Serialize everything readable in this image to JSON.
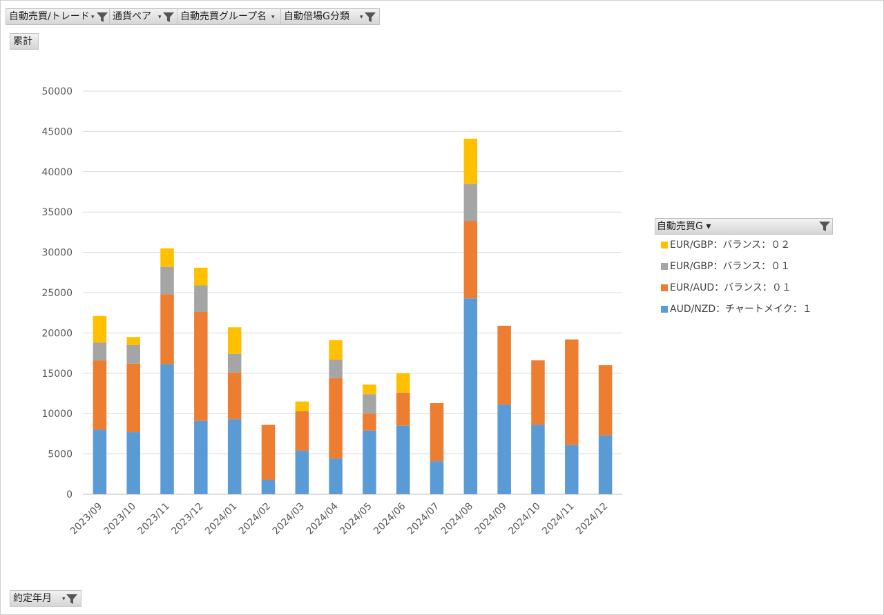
{
  "filters": {
    "auto_trade": "自動売買/トレード",
    "currency_pair": "通貨ペア",
    "auto_group_name": "自動売買グループ名",
    "multiplier_category": "自動倍場G分類"
  },
  "value_field": "累計",
  "axis_field": "約定年月",
  "legend_title": "自動売買G",
  "chart_data": {
    "type": "bar",
    "stacked": true,
    "categories": [
      "2023/09",
      "2023/10",
      "2023/11",
      "2023/12",
      "2024/01",
      "2024/02",
      "2024/03",
      "2024/04",
      "2024/05",
      "2024/06",
      "2024/07",
      "2024/08",
      "2024/09",
      "2024/10",
      "2024/11",
      "2024/12"
    ],
    "series": [
      {
        "name": "AUD/NZD：チャートメイク：１",
        "color": "#5b9bd5",
        "values": [
          8000,
          7700,
          16100,
          9100,
          9300,
          1800,
          5400,
          4400,
          7900,
          8500,
          4100,
          24300,
          11100,
          8600,
          6100,
          7300
        ]
      },
      {
        "name": "EUR/AUD：バランス：０１",
        "color": "#ed7d31",
        "values": [
          8600,
          8500,
          8700,
          13500,
          5800,
          6800,
          4900,
          10000,
          2100,
          4100,
          7200,
          9600,
          9800,
          8000,
          13100,
          8700
        ]
      },
      {
        "name": "EUR/GBP：バランス：０１",
        "color": "#a5a5a5",
        "values": [
          2200,
          2300,
          3400,
          3300,
          2300,
          0,
          0,
          2300,
          2400,
          0,
          0,
          4600,
          0,
          0,
          0,
          0
        ]
      },
      {
        "name": "EUR/GBP：バランス：０２",
        "color": "#ffc000",
        "values": [
          3300,
          1000,
          2300,
          2200,
          3300,
          0,
          1200,
          2400,
          1200,
          2400,
          0,
          5600,
          0,
          0,
          0,
          0
        ]
      }
    ],
    "ylim": [
      0,
      50000
    ],
    "yticks": [
      0,
      5000,
      10000,
      15000,
      20000,
      25000,
      30000,
      35000,
      40000,
      45000,
      50000
    ],
    "grid": true,
    "legend_position": "right"
  }
}
